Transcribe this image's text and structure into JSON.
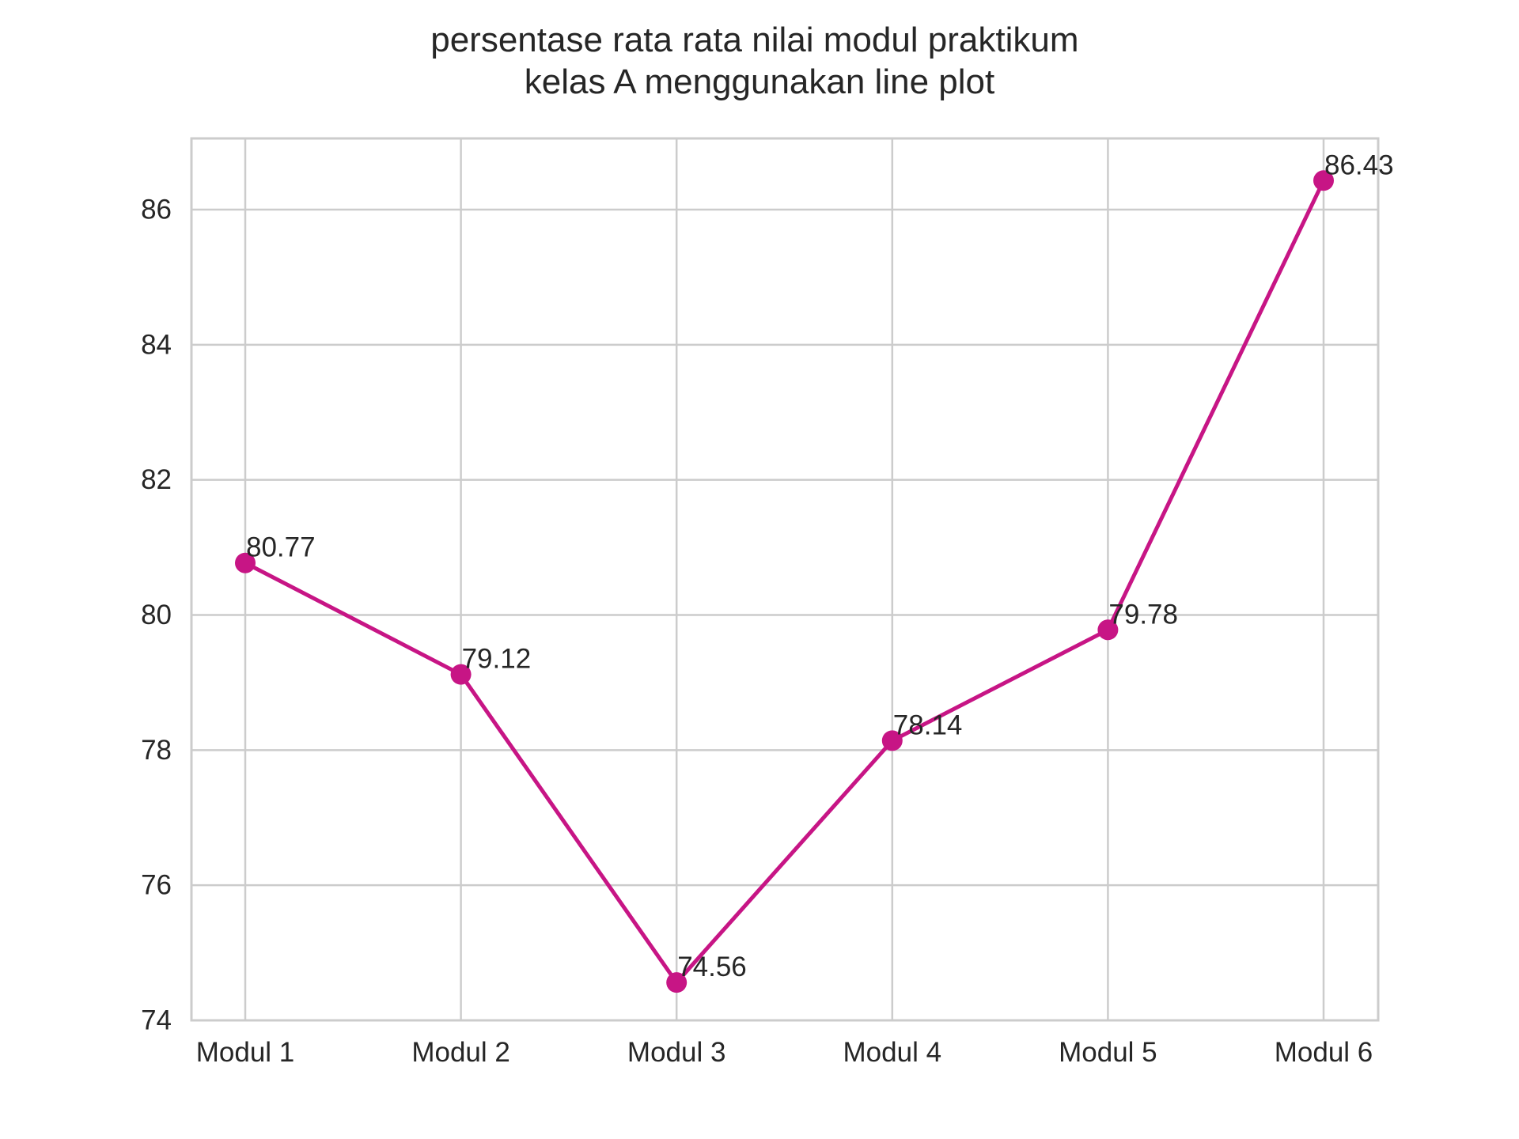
{
  "chart_data": {
    "type": "line",
    "title": "persentase rata rata nilai modul praktikum\nkelas A menggunakan line plot",
    "xlabel": "",
    "ylabel": "",
    "categories": [
      "Modul 1",
      "Modul 2",
      "Modul 3",
      "Modul 4",
      "Modul 5",
      "Modul 6"
    ],
    "series": [
      {
        "values": [
          80.77,
          79.12,
          74.56,
          78.14,
          79.78,
          86.43
        ],
        "color": "#c71585",
        "marker": "circle"
      }
    ],
    "data_labels": [
      "80.77",
      "79.12",
      "74.56",
      "78.14",
      "79.78",
      "86.43"
    ],
    "ylim": [
      74,
      87
    ],
    "yticks": [
      74,
      76,
      78,
      80,
      82,
      84,
      86
    ],
    "ytick_labels": [
      "74",
      "76",
      "78",
      "80",
      "82",
      "84",
      "86"
    ],
    "grid": true,
    "legend": "none"
  }
}
